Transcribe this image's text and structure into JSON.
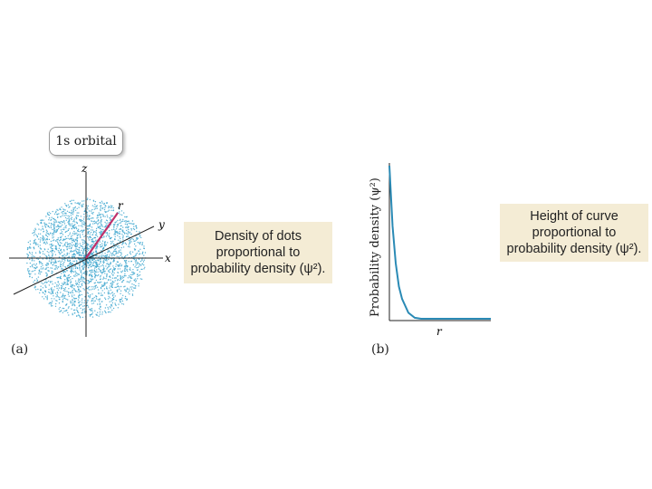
{
  "panel_a": {
    "label": "(a)",
    "orbital_label": "1s orbital",
    "axes": {
      "z": "z",
      "y": "y",
      "x": "x",
      "r": "r"
    },
    "note_lines": [
      "Density of dots",
      "proportional to",
      "probability density  (ψ²)."
    ],
    "colors": {
      "dots": "#3fa7cf",
      "radius_vector": "#c0306a",
      "axes": "#222222",
      "note_bg": "#f4ecd5"
    }
  },
  "panel_b": {
    "label": "(b)",
    "note_lines": [
      "Height of curve",
      "proportional to",
      "probability density  (ψ²)."
    ]
  },
  "chart_data": {
    "type": "line",
    "title": "",
    "xlabel": "r",
    "ylabel": "Probability density (ψ²)",
    "series": [
      {
        "x": [
          0,
          0.25,
          0.5,
          0.75,
          1,
          1.5,
          2,
          2.5,
          3,
          3.5,
          4,
          5,
          6,
          7,
          8
        ],
        "values": [
          1.0,
          0.61,
          0.37,
          0.22,
          0.14,
          0.05,
          0.018,
          0.007,
          0.0025,
          0.0009,
          0.0003,
          5e-05,
          0,
          0,
          0
        ]
      }
    ],
    "xlim": [
      0,
      8
    ],
    "ylim": [
      0,
      1.0
    ],
    "grid": false,
    "colors": {
      "line": "#2a8ab5"
    }
  }
}
